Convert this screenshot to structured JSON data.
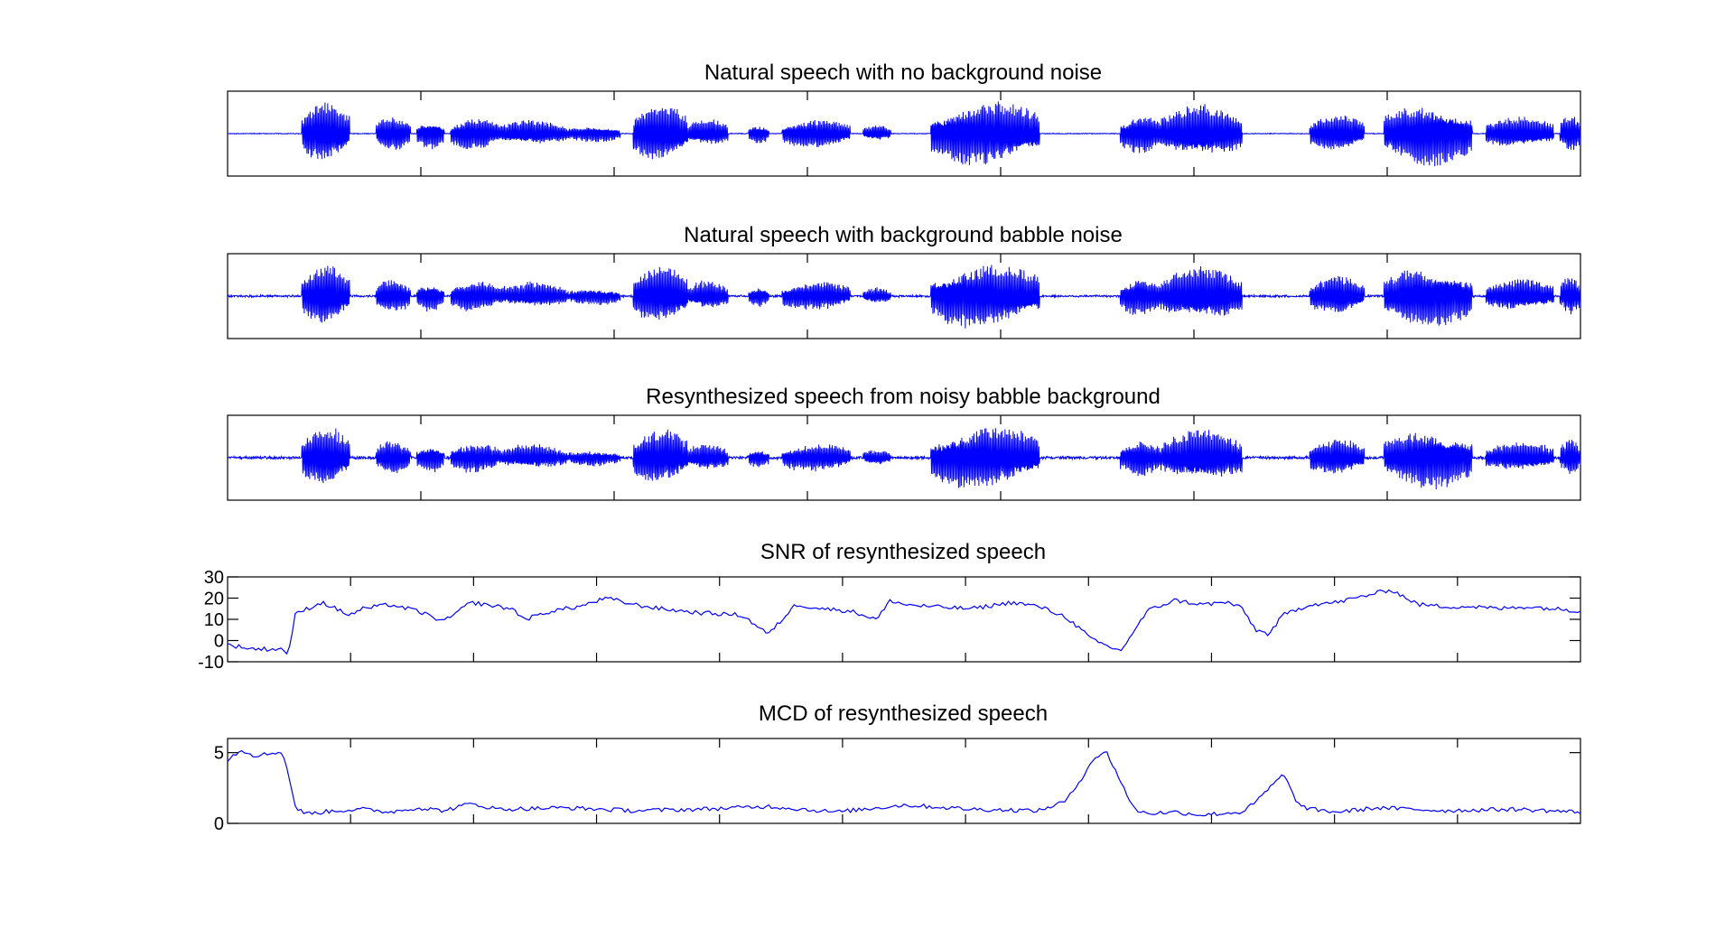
{
  "colors": {
    "waveform": "#0000ff",
    "axes": "#000000",
    "background": "#ffffff"
  },
  "chart_data": [
    {
      "type": "line",
      "title": "Natural speech with no background noise",
      "series": [
        {
          "kind": "waveform",
          "noise_level": 0.0,
          "amplitude_scale": 1.0
        }
      ],
      "yticks": [],
      "ylim": [
        -1,
        1
      ],
      "grid": false
    },
    {
      "type": "line",
      "title": "Natural speech with background babble noise",
      "series": [
        {
          "kind": "waveform",
          "noise_level": 0.025,
          "amplitude_scale": 1.0
        }
      ],
      "yticks": [],
      "ylim": [
        -1,
        1
      ],
      "grid": false
    },
    {
      "type": "line",
      "title": "Resynthesized speech from noisy babble background",
      "series": [
        {
          "kind": "waveform",
          "noise_level": 0.035,
          "amplitude_scale": 0.95
        }
      ],
      "yticks": [],
      "ylim": [
        -1,
        1
      ],
      "grid": false
    },
    {
      "type": "line",
      "title": "SNR of resynthesized speech",
      "xlim": [
        0,
        1
      ],
      "ylim": [
        -10,
        30
      ],
      "yticks": [
        30,
        20,
        10,
        0,
        -10
      ],
      "grid": false,
      "series": [
        {
          "kind": "curve",
          "x": [
            0,
            0.02,
            0.04,
            0.045,
            0.05,
            0.055,
            0.07,
            0.09,
            0.1,
            0.12,
            0.14,
            0.16,
            0.18,
            0.2,
            0.21,
            0.22,
            0.24,
            0.26,
            0.28,
            0.3,
            0.32,
            0.35,
            0.38,
            0.4,
            0.42,
            0.44,
            0.46,
            0.48,
            0.49,
            0.5,
            0.52,
            0.55,
            0.58,
            0.6,
            0.62,
            0.64,
            0.66,
            0.68,
            0.7,
            0.72,
            0.74,
            0.75,
            0.76,
            0.77,
            0.78,
            0.8,
            0.82,
            0.84,
            0.86,
            0.88,
            0.9,
            0.92,
            0.94,
            0.96,
            0.98,
            1
          ],
          "y": [
            -2,
            -4,
            -4,
            -6,
            12,
            14,
            18,
            12,
            15,
            17,
            14,
            9,
            18,
            16,
            15,
            10,
            14,
            16,
            20,
            17,
            15,
            13,
            12,
            3,
            17,
            15,
            14,
            10,
            19,
            17,
            16,
            15,
            18,
            16,
            11,
            0,
            -5,
            14,
            19,
            17,
            18,
            15,
            5,
            3,
            12,
            17,
            18,
            21,
            24,
            17,
            16,
            16,
            15,
            16,
            15,
            14
          ]
        }
      ]
    },
    {
      "type": "line",
      "title": "MCD of resynthesized speech",
      "xlim": [
        0,
        1
      ],
      "ylim": [
        0,
        6
      ],
      "yticks": [
        5,
        0
      ],
      "grid": false,
      "series": [
        {
          "kind": "curve",
          "x": [
            0,
            0.01,
            0.02,
            0.03,
            0.04,
            0.045,
            0.05,
            0.055,
            0.06,
            0.08,
            0.1,
            0.12,
            0.14,
            0.16,
            0.18,
            0.2,
            0.25,
            0.3,
            0.35,
            0.4,
            0.45,
            0.5,
            0.55,
            0.6,
            0.62,
            0.63,
            0.64,
            0.65,
            0.66,
            0.67,
            0.68,
            0.7,
            0.72,
            0.75,
            0.76,
            0.77,
            0.78,
            0.785,
            0.79,
            0.8,
            0.82,
            0.85,
            0.9,
            0.95,
            1
          ],
          "y": [
            4.5,
            5.2,
            4.8,
            4.9,
            5.1,
            3.5,
            1.2,
            0.8,
            0.7,
            0.9,
            1.0,
            0.8,
            1.1,
            0.9,
            1.4,
            1.0,
            1.1,
            0.9,
            1.0,
            1.2,
            0.8,
            1.3,
            1.0,
            0.9,
            1.6,
            3.0,
            4.6,
            5.0,
            3.0,
            1.0,
            0.7,
            0.8,
            0.6,
            0.8,
            1.5,
            2.5,
            3.4,
            2.8,
            1.4,
            1.0,
            0.8,
            1.1,
            0.9,
            1.0,
            0.8
          ]
        }
      ]
    }
  ]
}
